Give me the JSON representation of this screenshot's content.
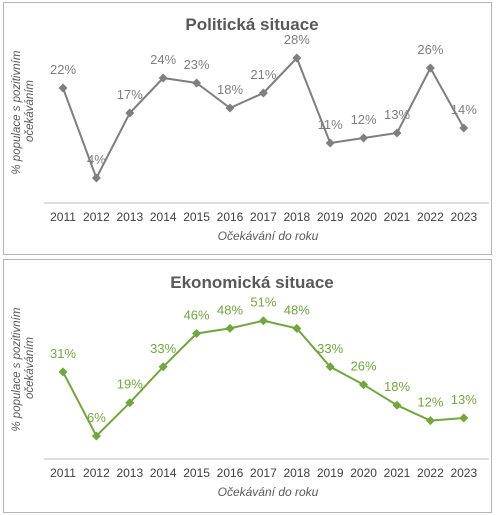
{
  "chart_data": [
    {
      "type": "line",
      "title": "Politická situace",
      "ylabel_lines": [
        "% populace s pozitivním",
        "očekáváním"
      ],
      "xlabel": "Očekávání do roku",
      "categories": [
        "2011",
        "2012",
        "2013",
        "2014",
        "2015",
        "2016",
        "2017",
        "2018",
        "2019",
        "2020",
        "2021",
        "2022",
        "2023"
      ],
      "values": [
        22,
        4,
        17,
        24,
        23,
        18,
        21,
        28,
        11,
        12,
        13,
        26,
        14
      ],
      "data_labels": [
        "22%",
        "4%",
        "17%",
        "24%",
        "23%",
        "18%",
        "21%",
        "28%",
        "11%",
        "12%",
        "13%",
        "26%",
        "14%"
      ],
      "ylim": [
        -1,
        33
      ],
      "color": "#7f7f7f",
      "grid": false,
      "legend": "none"
    },
    {
      "type": "line",
      "title": "Ekonomická situace",
      "ylabel_lines": [
        "% populace s pozitivním",
        "očekáváním"
      ],
      "xlabel": "Očekávání do roku",
      "categories": [
        "2011",
        "2012",
        "2013",
        "2014",
        "2015",
        "2016",
        "2017",
        "2018",
        "2019",
        "2020",
        "2021",
        "2022",
        "2023"
      ],
      "values": [
        31,
        6,
        19,
        33,
        46,
        48,
        51,
        48,
        33,
        26,
        18,
        12,
        13
      ],
      "data_labels": [
        "31%",
        "6%",
        "19%",
        "33%",
        "46%",
        "48%",
        "51%",
        "48%",
        "33%",
        "26%",
        "18%",
        "12%",
        "13%"
      ],
      "ylim": [
        -3,
        63
      ],
      "color": "#70a83a",
      "grid": false,
      "legend": "none"
    }
  ]
}
